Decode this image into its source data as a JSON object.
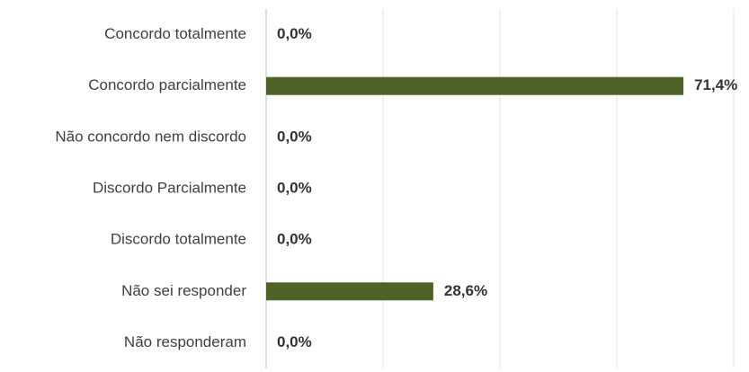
{
  "chart_data": {
    "type": "barh",
    "categories": [
      "Concordo totalmente",
      "Concordo parcialmente",
      "Não concordo nem discordo",
      "Discordo Parcialmente",
      "Discordo totalmente",
      "Não sei responder",
      "Não responderam"
    ],
    "values": [
      0,
      71.4,
      0,
      0,
      0,
      28.6,
      0
    ],
    "value_labels": [
      "0,0%",
      "71,4%",
      "0,0%",
      "0,0%",
      "0,0%",
      "28,6%",
      "0,0%"
    ],
    "color": "#4f6228",
    "xlim": [
      0,
      80
    ],
    "xticks": [
      0,
      20,
      40,
      60,
      80
    ],
    "grid": true
  }
}
